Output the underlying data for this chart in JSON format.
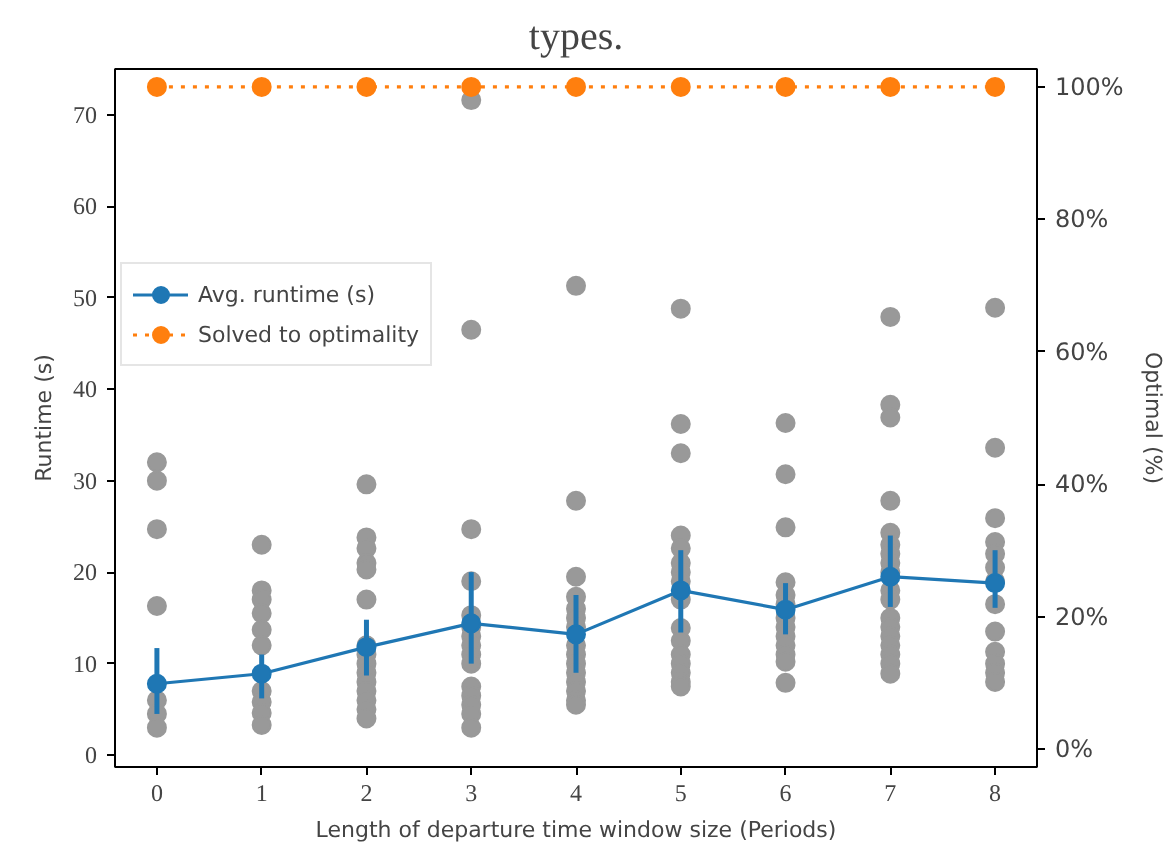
{
  "chart_data": {
    "type": "line",
    "title": "types.",
    "xlabel": "Length of departure time window size (Periods)",
    "ylabel": "Runtime (s)",
    "y2label": "Optimal (%)",
    "xlim": [
      -0.4,
      8.4
    ],
    "xticks": [
      0,
      1,
      2,
      3,
      4,
      5,
      6,
      7,
      8
    ],
    "ylim": [
      -1.3,
      75
    ],
    "yticks": [
      0,
      10,
      20,
      30,
      40,
      50,
      60,
      70
    ],
    "y2lim": [
      -2.7,
      102.7
    ],
    "y2ticks": [
      {
        "value": 0,
        "label": "0%"
      },
      {
        "value": 20,
        "label": "20%"
      },
      {
        "value": 40,
        "label": "40%"
      },
      {
        "value": 60,
        "label": "60%"
      },
      {
        "value": 80,
        "label": "80%"
      },
      {
        "value": 100,
        "label": "100%"
      }
    ],
    "grid": false,
    "legend": "left",
    "marker": "circle",
    "series": [
      {
        "type": "scatter",
        "color": "#999999",
        "x": [
          0,
          0,
          0,
          0,
          0,
          0,
          0,
          1,
          1,
          1,
          1,
          1,
          1,
          1,
          1,
          1,
          1,
          2,
          2,
          2,
          2,
          2,
          2,
          2,
          2,
          2,
          2,
          2,
          2,
          2,
          2,
          2,
          3,
          3,
          3,
          3,
          3,
          3,
          3,
          3,
          3,
          3,
          3,
          3,
          3,
          3,
          3,
          4,
          4,
          4,
          4,
          4,
          4,
          4,
          4,
          4,
          4,
          4,
          4,
          4,
          4,
          4,
          5,
          5,
          5,
          5,
          5,
          5,
          5,
          5,
          5,
          5,
          5,
          5,
          5,
          5,
          5,
          5,
          6,
          6,
          6,
          6,
          6,
          6,
          6,
          6,
          6,
          6,
          6,
          6,
          6,
          7,
          7,
          7,
          7,
          7,
          7,
          7,
          7,
          7,
          7,
          7,
          7,
          7,
          7,
          7,
          7,
          7,
          7,
          8,
          8,
          8,
          8,
          8,
          8,
          8,
          8,
          8,
          8,
          8,
          8,
          8
        ],
        "values": [
          32,
          30,
          24.7,
          16.3,
          6,
          4.5,
          3,
          23,
          18,
          17,
          15.5,
          13.7,
          12,
          7,
          5.8,
          4.6,
          3.3,
          29.6,
          23.8,
          22.6,
          21,
          20.3,
          17,
          12,
          11,
          10,
          9,
          8,
          7,
          6,
          5,
          4,
          71.6,
          46.5,
          24.7,
          19,
          15.3,
          14,
          13,
          12,
          11,
          10,
          7.5,
          6.5,
          5.5,
          4.5,
          3,
          51.3,
          27.8,
          19.5,
          17.3,
          16,
          15,
          14,
          12,
          11,
          10,
          9,
          8,
          7,
          6,
          5.5,
          48.8,
          36.2,
          33,
          24,
          22.6,
          21,
          20,
          19,
          17,
          13.9,
          12.5,
          11,
          10,
          9,
          8,
          7.5,
          36.3,
          30.7,
          24.9,
          18.9,
          17.5,
          16.5,
          15,
          14,
          13,
          12,
          11,
          10.2,
          7.9,
          47.9,
          38.3,
          36.9,
          27.8,
          24.3,
          23,
          22,
          21,
          20,
          18,
          17,
          15,
          14,
          13,
          12,
          11,
          10,
          8.9,
          48.9,
          33.6,
          25.9,
          23.3,
          22,
          20.5,
          19,
          16.5,
          13.5,
          11.3,
          10,
          9,
          8
        ]
      },
      {
        "name": "Avg. runtime (s)",
        "color": "#1f77b4",
        "line_style": "solid",
        "x": [
          0,
          1,
          2,
          3,
          4,
          5,
          6,
          7,
          8
        ],
        "values": [
          7.8,
          8.9,
          11.8,
          14.4,
          13.2,
          18.0,
          15.9,
          19.5,
          18.8
        ],
        "errors": [
          [
            4.5,
            11.7
          ],
          [
            6.2,
            11
          ],
          [
            8.7,
            14.8
          ],
          [
            10,
            20
          ],
          [
            9,
            17.5
          ],
          [
            13.4,
            22.4
          ],
          [
            13.2,
            18.8
          ],
          [
            16.2,
            24
          ],
          [
            16.1,
            22.4
          ]
        ]
      },
      {
        "type": "line",
        "name": "Solved to optimality",
        "color": "#ff7f0e",
        "line_style": "dotted",
        "axis": "y2",
        "x": [
          0,
          1,
          2,
          3,
          4,
          5,
          6,
          7,
          8
        ],
        "values": [
          100,
          100,
          100,
          100,
          100,
          100,
          100,
          100,
          100
        ]
      }
    ]
  }
}
